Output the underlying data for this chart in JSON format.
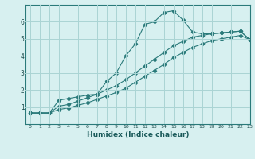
{
  "xlabel": "Humidex (Indice chaleur)",
  "background_color": "#d7f0f0",
  "grid_color": "#aad4d4",
  "line_color": "#2a7a7a",
  "xlim": [
    -0.5,
    23
  ],
  "ylim": [
    0,
    7
  ],
  "xticks": [
    0,
    1,
    2,
    3,
    4,
    5,
    6,
    7,
    8,
    9,
    10,
    11,
    12,
    13,
    14,
    15,
    16,
    17,
    18,
    19,
    20,
    21,
    22,
    23
  ],
  "yticks": [
    1,
    2,
    3,
    4,
    5,
    6
  ],
  "line1_x": [
    0,
    1,
    2,
    3,
    4,
    5,
    6,
    7,
    8,
    9,
    10,
    11,
    12,
    13,
    14,
    15,
    16,
    17,
    18,
    19,
    20,
    21,
    22,
    23
  ],
  "line1_y": [
    0.65,
    0.65,
    0.65,
    1.4,
    1.5,
    1.6,
    1.7,
    1.75,
    2.5,
    3.0,
    4.0,
    4.7,
    5.85,
    6.0,
    6.55,
    6.65,
    6.1,
    5.4,
    5.3,
    5.3,
    5.35,
    5.4,
    5.45,
    4.95
  ],
  "line2_x": [
    0,
    1,
    2,
    3,
    4,
    5,
    6,
    7,
    8,
    9,
    10,
    11,
    12,
    13,
    14,
    15,
    16,
    17,
    18,
    19,
    20,
    21,
    22,
    23
  ],
  "line2_y": [
    0.65,
    0.65,
    0.65,
    1.05,
    1.15,
    1.35,
    1.55,
    1.75,
    2.0,
    2.25,
    2.6,
    3.0,
    3.4,
    3.8,
    4.2,
    4.6,
    4.85,
    5.1,
    5.2,
    5.3,
    5.35,
    5.4,
    5.45,
    4.95
  ],
  "line3_x": [
    0,
    1,
    2,
    3,
    4,
    5,
    6,
    7,
    8,
    9,
    10,
    11,
    12,
    13,
    14,
    15,
    16,
    17,
    18,
    19,
    20,
    21,
    22,
    23
  ],
  "line3_y": [
    0.65,
    0.65,
    0.65,
    0.85,
    0.95,
    1.1,
    1.25,
    1.45,
    1.65,
    1.85,
    2.1,
    2.45,
    2.8,
    3.15,
    3.5,
    3.9,
    4.2,
    4.5,
    4.7,
    4.9,
    5.0,
    5.1,
    5.2,
    4.95
  ]
}
